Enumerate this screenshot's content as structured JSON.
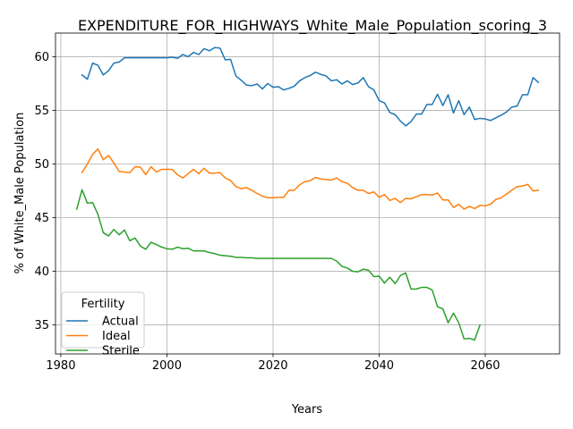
{
  "chart_data": {
    "type": "line",
    "title": "EXPENDITURE_FOR_HIGHWAYS_White_Male_Population_scoring_3",
    "xlabel": "Years",
    "ylabel": "% of White_Male Population",
    "xlim": [
      1979,
      2074
    ],
    "ylim": [
      32.3,
      62.2
    ],
    "xticks": [
      1980,
      2000,
      2020,
      2040,
      2060
    ],
    "yticks": [
      35,
      40,
      45,
      50,
      55,
      60
    ],
    "grid": true,
    "legend": {
      "title": "Fertility",
      "placement": "lower-left"
    },
    "series": [
      {
        "name": "Actual",
        "color": "#1f77b4",
        "x": [
          1984,
          1985,
          1986,
          1987,
          1988,
          1989,
          1990,
          1991,
          1992,
          1993,
          1994,
          1995,
          1996,
          1997,
          1998,
          1999,
          2000,
          2001,
          2002,
          2003,
          2004,
          2005,
          2006,
          2007,
          2008,
          2009,
          2010,
          2011,
          2012,
          2013,
          2014,
          2015,
          2016,
          2017,
          2018,
          2019,
          2020,
          2021,
          2022,
          2023,
          2024,
          2025,
          2026,
          2027,
          2028,
          2029,
          2030,
          2031,
          2032,
          2033,
          2034,
          2035,
          2036,
          2037,
          2038,
          2039,
          2040,
          2041,
          2042,
          2043,
          2044,
          2045,
          2046,
          2047,
          2048,
          2049,
          2050,
          2051,
          2052,
          2053,
          2054,
          2055,
          2056,
          2057,
          2058,
          2059,
          2060,
          2061,
          2062,
          2063,
          2064,
          2065,
          2066,
          2067,
          2068,
          2069,
          2070
        ],
        "y": [
          58.3,
          57.9,
          59.4,
          59.2,
          58.3,
          58.7,
          59.4,
          59.5,
          59.9,
          59.9,
          59.9,
          59.9,
          59.9,
          59.9,
          59.9,
          59.9,
          59.9,
          59.95,
          59.85,
          60.2,
          60.0,
          60.4,
          60.2,
          60.75,
          60.55,
          60.85,
          60.8,
          59.7,
          59.75,
          58.2,
          57.8,
          57.35,
          57.3,
          57.45,
          57.0,
          57.5,
          57.15,
          57.2,
          56.9,
          57.05,
          57.25,
          57.75,
          58.05,
          58.25,
          58.55,
          58.35,
          58.2,
          57.75,
          57.85,
          57.45,
          57.75,
          57.4,
          57.55,
          58.05,
          57.2,
          56.9,
          55.9,
          55.7,
          54.8,
          54.6,
          54.0,
          53.55,
          53.95,
          54.65,
          54.65,
          55.55,
          55.55,
          56.5,
          55.45,
          56.45,
          54.75,
          55.9,
          54.6,
          55.3,
          54.15,
          54.25,
          54.2,
          54.05,
          54.3,
          54.55,
          54.85,
          55.3,
          55.4,
          56.45,
          56.45,
          58.05,
          57.6
        ]
      },
      {
        "name": "Ideal",
        "color": "#ff7f0e",
        "x": [
          1984,
          1985,
          1986,
          1987,
          1988,
          1989,
          1990,
          1991,
          1992,
          1993,
          1994,
          1995,
          1996,
          1997,
          1998,
          1999,
          2000,
          2001,
          2002,
          2003,
          2004,
          2005,
          2006,
          2007,
          2008,
          2009,
          2010,
          2011,
          2012,
          2013,
          2014,
          2015,
          2016,
          2017,
          2018,
          2019,
          2020,
          2021,
          2022,
          2023,
          2024,
          2025,
          2026,
          2027,
          2028,
          2029,
          2030,
          2031,
          2032,
          2033,
          2034,
          2035,
          2036,
          2037,
          2038,
          2039,
          2040,
          2041,
          2042,
          2043,
          2044,
          2045,
          2046,
          2047,
          2048,
          2049,
          2050,
          2051,
          2052,
          2053,
          2054,
          2055,
          2056,
          2057,
          2058,
          2059,
          2060,
          2061,
          2062,
          2063,
          2064,
          2065,
          2066,
          2067,
          2068,
          2069,
          2070
        ],
        "y": [
          49.2,
          50.0,
          50.9,
          51.4,
          50.4,
          50.8,
          50.1,
          49.3,
          49.25,
          49.2,
          49.75,
          49.7,
          49.0,
          49.75,
          49.25,
          49.5,
          49.5,
          49.5,
          49.0,
          48.7,
          49.1,
          49.5,
          49.1,
          49.6,
          49.15,
          49.15,
          49.2,
          48.7,
          48.45,
          47.9,
          47.7,
          47.8,
          47.55,
          47.25,
          47.0,
          46.85,
          46.85,
          46.9,
          46.9,
          47.55,
          47.55,
          48.05,
          48.35,
          48.45,
          48.75,
          48.6,
          48.55,
          48.5,
          48.7,
          48.35,
          48.2,
          47.8,
          47.55,
          47.55,
          47.25,
          47.4,
          46.9,
          47.15,
          46.6,
          46.8,
          46.4,
          46.8,
          46.75,
          46.95,
          47.15,
          47.15,
          47.1,
          47.3,
          46.65,
          46.65,
          45.95,
          46.25,
          45.8,
          46.05,
          45.85,
          46.15,
          46.1,
          46.25,
          46.7,
          46.85,
          47.2,
          47.55,
          47.9,
          47.95,
          48.1,
          47.5,
          47.55
        ]
      },
      {
        "name": "Sterile",
        "color": "#2ca02c",
        "x": [
          1983,
          1984,
          1985,
          1986,
          1987,
          1988,
          1989,
          1990,
          1991,
          1992,
          1993,
          1994,
          1995,
          1996,
          1997,
          1998,
          1999,
          2000,
          2001,
          2002,
          2003,
          2004,
          2005,
          2006,
          2007,
          2008,
          2009,
          2010,
          2011,
          2012,
          2013,
          2014,
          2015,
          2016,
          2017,
          2018,
          2019,
          2020,
          2021,
          2022,
          2023,
          2024,
          2025,
          2026,
          2027,
          2028,
          2029,
          2030,
          2031,
          2032,
          2033,
          2034,
          2035,
          2036,
          2037,
          2038,
          2039,
          2040,
          2041,
          2042,
          2043,
          2044,
          2045,
          2046,
          2047,
          2048,
          2049,
          2050,
          2051,
          2052,
          2053,
          2054,
          2055,
          2056,
          2057,
          2058,
          2059
        ],
        "y": [
          45.8,
          47.6,
          46.35,
          46.4,
          45.3,
          43.6,
          43.3,
          43.9,
          43.4,
          43.85,
          42.85,
          43.1,
          42.35,
          42.05,
          42.7,
          42.5,
          42.25,
          42.1,
          42.05,
          42.25,
          42.1,
          42.15,
          41.9,
          41.9,
          41.9,
          41.75,
          41.65,
          41.5,
          41.45,
          41.4,
          41.3,
          41.3,
          41.25,
          41.25,
          41.2,
          41.2,
          41.2,
          41.2,
          41.2,
          41.2,
          41.2,
          41.2,
          41.2,
          41.2,
          41.2,
          41.2,
          41.2,
          41.2,
          41.2,
          40.95,
          40.45,
          40.3,
          40.0,
          39.95,
          40.2,
          40.1,
          39.5,
          39.55,
          38.9,
          39.45,
          38.85,
          39.6,
          39.85,
          38.35,
          38.35,
          38.5,
          38.5,
          38.25,
          36.7,
          36.5,
          35.2,
          36.1,
          35.2,
          33.7,
          33.75,
          33.6,
          35.0
        ]
      }
    ]
  }
}
